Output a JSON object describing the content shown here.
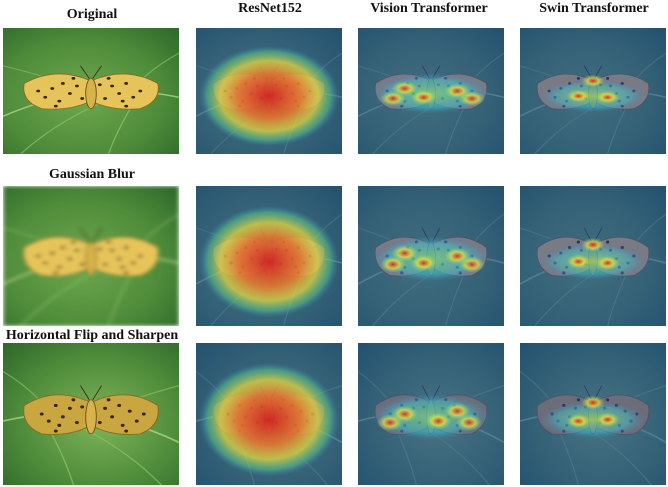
{
  "rows": [
    {
      "label": "Original"
    },
    {
      "label": "Gaussian Blur"
    },
    {
      "label": "Horizontal Flip and Sharpen"
    }
  ],
  "columns": [
    {
      "label": "ResNet152"
    },
    {
      "label": "Vision Transformer"
    },
    {
      "label": "Swin Transformer"
    }
  ],
  "colors": {
    "leaf": "#6fa84e",
    "leaf_dark": "#2f6a2c",
    "moth": "#e6c45a",
    "heat_hot": "#d9201c",
    "heat_mid": "#f2e23a",
    "heat_cool": "#1e3ea8"
  },
  "images": [
    {
      "row": 0,
      "col": 0,
      "kind": "photo",
      "icon": "moth-on-leaf-photo"
    },
    {
      "row": 0,
      "col": 1,
      "kind": "heatmap-resnet",
      "icon": "attention-heatmap"
    },
    {
      "row": 0,
      "col": 2,
      "kind": "heatmap-vit",
      "icon": "attention-heatmap"
    },
    {
      "row": 0,
      "col": 3,
      "kind": "heatmap-swin",
      "icon": "attention-heatmap"
    },
    {
      "row": 1,
      "col": 0,
      "kind": "photo-blur",
      "icon": "moth-on-leaf-photo"
    },
    {
      "row": 1,
      "col": 1,
      "kind": "heatmap-resnet",
      "icon": "attention-heatmap"
    },
    {
      "row": 1,
      "col": 2,
      "kind": "heatmap-vit",
      "icon": "attention-heatmap"
    },
    {
      "row": 1,
      "col": 3,
      "kind": "heatmap-swin",
      "icon": "attention-heatmap"
    },
    {
      "row": 2,
      "col": 0,
      "kind": "photo-sharp",
      "icon": "moth-on-leaf-photo"
    },
    {
      "row": 2,
      "col": 1,
      "kind": "heatmap-resnet",
      "icon": "attention-heatmap"
    },
    {
      "row": 2,
      "col": 2,
      "kind": "heatmap-vit",
      "icon": "attention-heatmap"
    },
    {
      "row": 2,
      "col": 3,
      "kind": "heatmap-swin",
      "icon": "attention-heatmap"
    }
  ]
}
